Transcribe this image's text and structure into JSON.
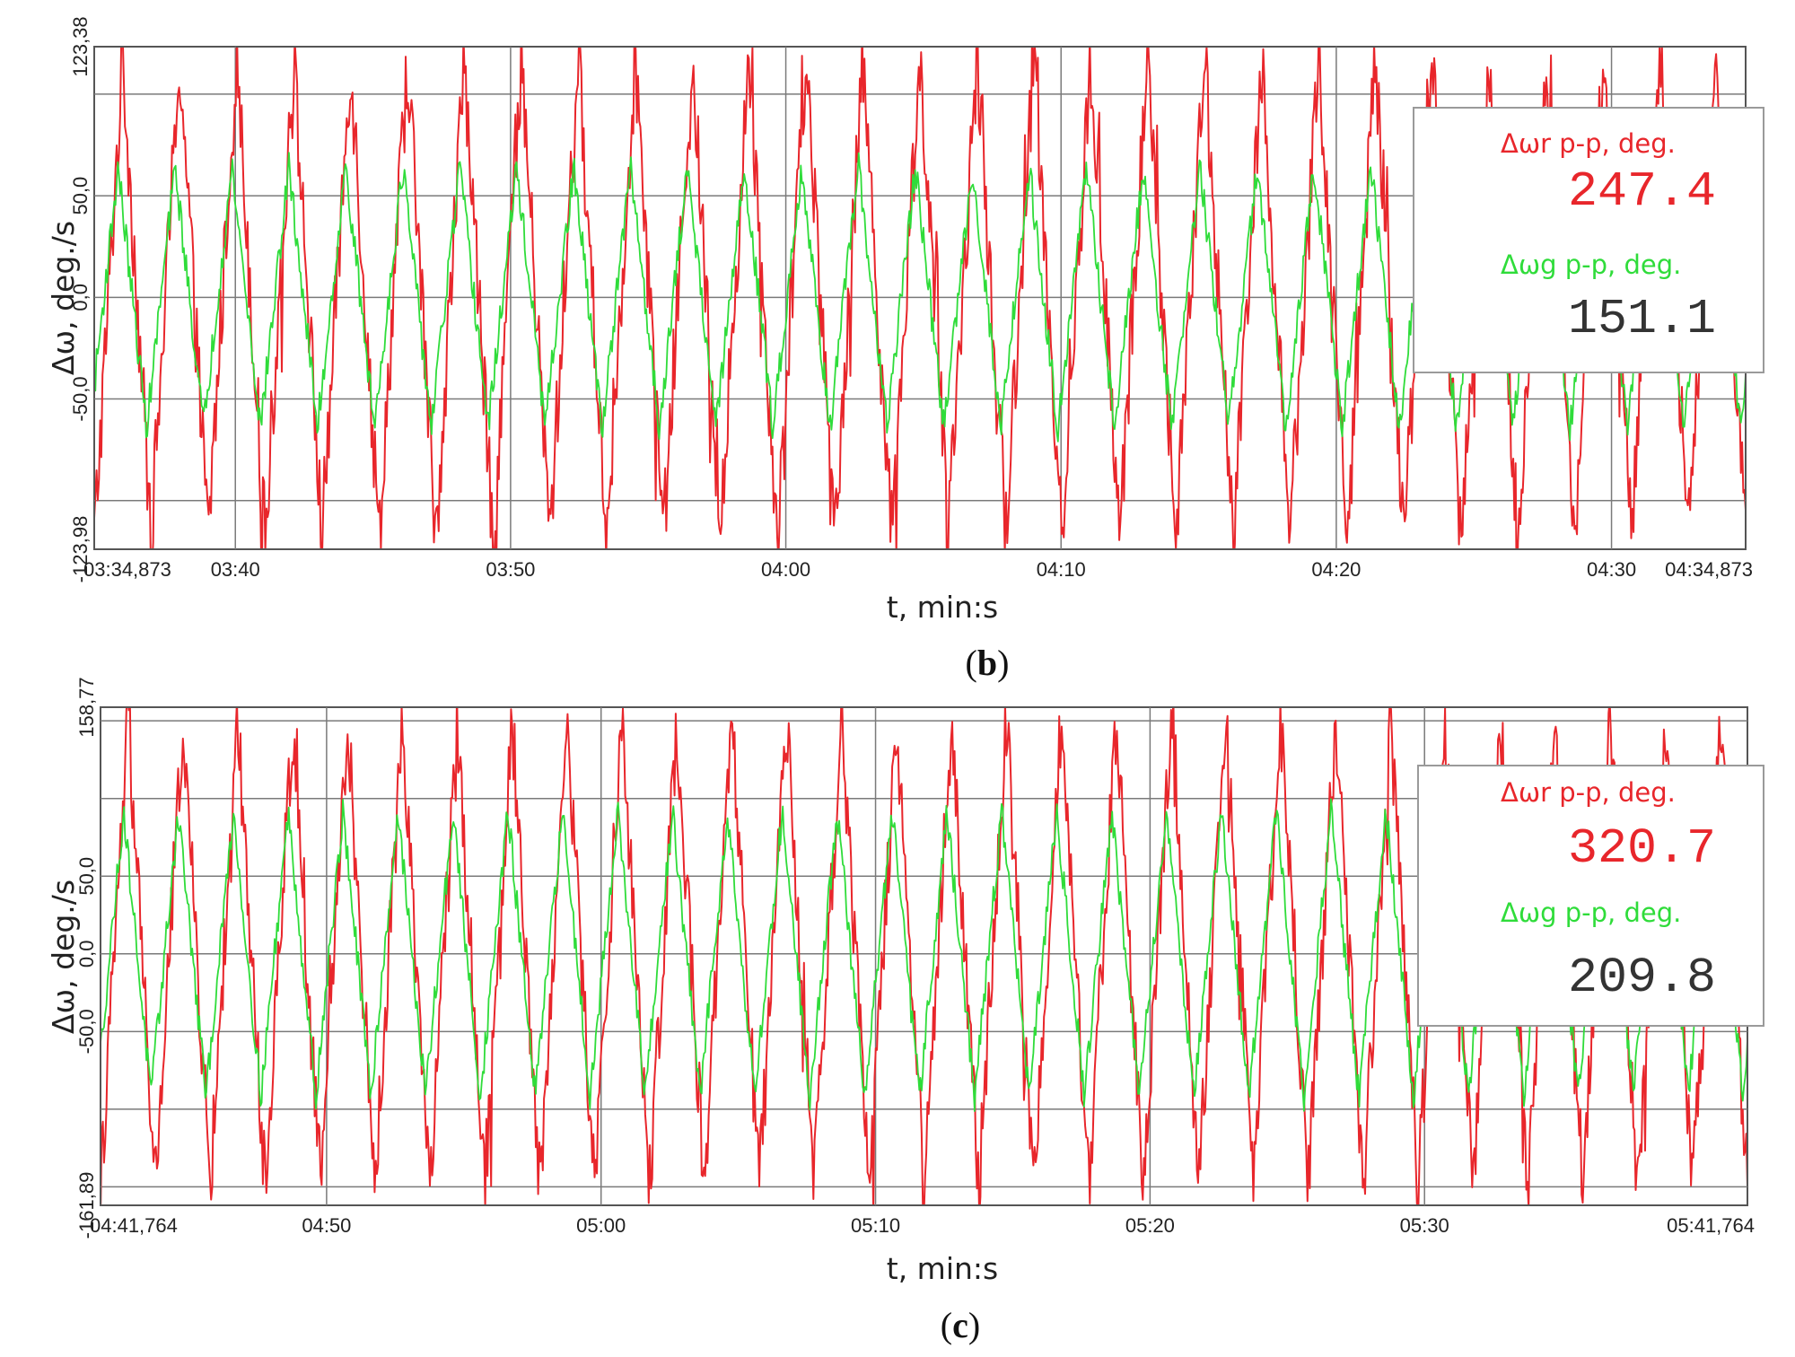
{
  "colors": {
    "rotor": "#e8262b",
    "generator": "#2fdc3a",
    "grid": "#7a7a7a",
    "frame": "#555555"
  },
  "chart_data": [
    {
      "type": "line",
      "panel_label": "b",
      "xlabel": "t, min:s",
      "ylabel": "Δω, deg./s",
      "ylim": [
        -123.98,
        123.38
      ],
      "xlim": [
        214.873,
        274.873
      ],
      "x_ticks": [
        {
          "value": 214.873,
          "label": "03:34,873"
        },
        {
          "value": 220,
          "label": "03:40"
        },
        {
          "value": 230,
          "label": "03:50"
        },
        {
          "value": 240,
          "label": "04:00"
        },
        {
          "value": 250,
          "label": "04:10"
        },
        {
          "value": 260,
          "label": "04:20"
        },
        {
          "value": 270,
          "label": "04:30"
        },
        {
          "value": 274.873,
          "label": "04:34,873"
        }
      ],
      "y_ticks": [
        {
          "value": 123.38,
          "label": "123,38"
        },
        {
          "value": 50.0,
          "label": "50,0"
        },
        {
          "value": 0.0,
          "label": "0,0"
        },
        {
          "value": -50.0,
          "label": "-50,0"
        },
        {
          "value": -123.98,
          "label": "-123,98"
        }
      ],
      "y_gridlines": [
        100,
        50,
        0,
        -50,
        -100
      ],
      "cycles": 29,
      "series": [
        {
          "name": "rotor",
          "color": "#e8262b",
          "amplitude": 118,
          "peak_to_peak": 247.4,
          "noise": 22
        },
        {
          "name": "generator",
          "color": "#2fdc3a",
          "amplitude": 64,
          "peak_to_peak": 151.1,
          "noise": 8
        }
      ],
      "legend": {
        "rotor_label": "Δωr p-p, deg.",
        "rotor_value": "247.4",
        "generator_label": "Δωg p-p, deg.",
        "generator_value": "151.1"
      }
    },
    {
      "type": "line",
      "panel_label": "c",
      "xlabel": "t, min:s",
      "ylabel": "Δω, deg./s",
      "ylim": [
        -161.89,
        158.77
      ],
      "xlim": [
        281.764,
        341.764
      ],
      "x_ticks": [
        {
          "value": 281.764,
          "label": "04:41,764"
        },
        {
          "value": 290,
          "label": "04:50"
        },
        {
          "value": 300,
          "label": "05:00"
        },
        {
          "value": 310,
          "label": "05:10"
        },
        {
          "value": 320,
          "label": "05:20"
        },
        {
          "value": 330,
          "label": "05:30"
        },
        {
          "value": 341.764,
          "label": "05:41,764"
        }
      ],
      "y_ticks": [
        {
          "value": 158.77,
          "label": "158,77"
        },
        {
          "value": 50.0,
          "label": "50,0"
        },
        {
          "value": 0.0,
          "label": "0,0"
        },
        {
          "value": -50.0,
          "label": "-50,0"
        },
        {
          "value": -161.89,
          "label": "-161,89"
        }
      ],
      "y_gridlines": [
        150,
        100,
        50,
        0,
        -50,
        -100,
        -150
      ],
      "cycles": 30,
      "series": [
        {
          "name": "rotor",
          "color": "#e8262b",
          "amplitude": 150,
          "peak_to_peak": 320.7,
          "noise": 25
        },
        {
          "name": "generator",
          "color": "#2fdc3a",
          "amplitude": 92,
          "peak_to_peak": 209.8,
          "noise": 10
        }
      ],
      "legend": {
        "rotor_label": "Δωr p-p, deg.",
        "rotor_value": "320.7",
        "generator_label": "Δωg p-p, deg.",
        "generator_value": "209.8"
      }
    }
  ]
}
